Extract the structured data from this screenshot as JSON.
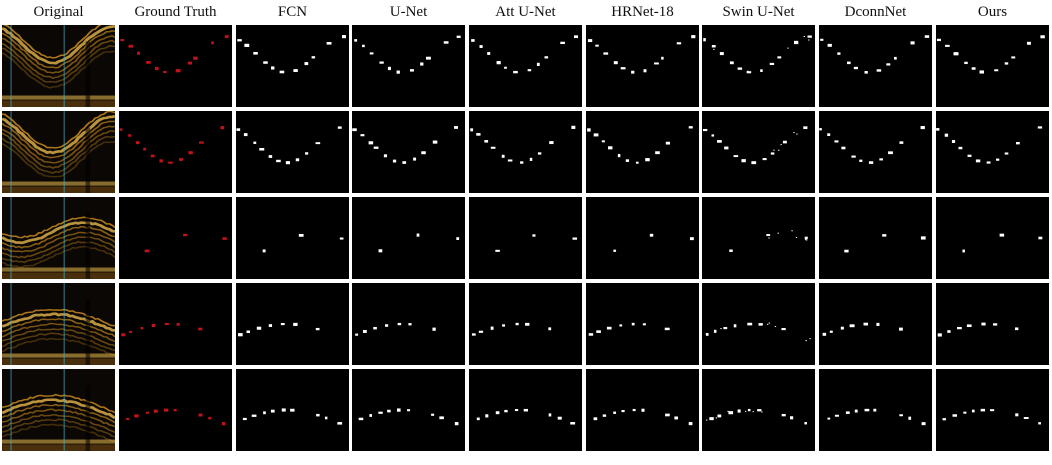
{
  "figure": {
    "column_headers": [
      "Original",
      "Ground Truth",
      "FCN",
      "U-Net",
      "Att U-Net",
      "HRNet-18",
      "Swin U-Net",
      "DconnNet",
      "Ours"
    ],
    "rows": 5,
    "colors": {
      "background": "#ffffff",
      "panel": "#000000",
      "ground_truth_marks": "#c0141c",
      "prediction_marks": "#ffffff",
      "oct_band": "#c98a1e",
      "oct_band_bright": "#f0c050",
      "guide_line": "#3fb0c8"
    }
  }
}
